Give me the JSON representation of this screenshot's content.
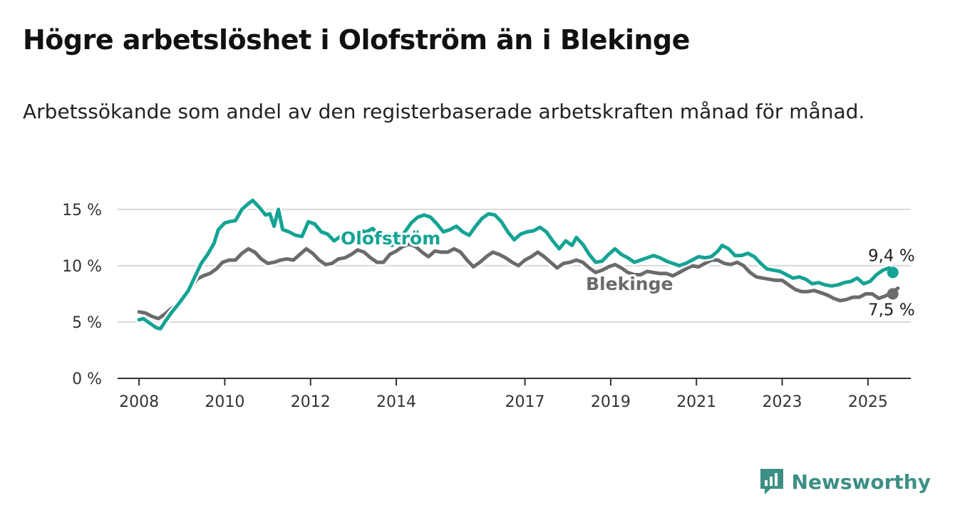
{
  "title": "Högre arbetslöshet i Olofström än i Blekinge",
  "subtitle": "Arbetssökande som andel av den registerbaserade arbetskraften månad för månad.",
  "brand": {
    "name": "Newsworthy",
    "icon": "newsworthy-logo-icon",
    "color": "#3d8f85"
  },
  "chart_data": {
    "type": "line",
    "title": "Högre arbetslöshet i Olofström än i Blekinge",
    "subtitle": "Arbetssökande som andel av den registerbaserade arbetskraften månad för månad.",
    "xlabel": "",
    "ylabel": "",
    "xlim": [
      2007.5,
      2026.1
    ],
    "ylim": [
      0,
      16
    ],
    "x_ticks": [
      2008,
      2010,
      2012,
      2014,
      2017,
      2019,
      2021,
      2023,
      2025
    ],
    "x_tick_labels": [
      "2008",
      "2010",
      "2012",
      "2014",
      "2017",
      "2019",
      "2021",
      "2023",
      "2025"
    ],
    "y_ticks": [
      0,
      5,
      10,
      15
    ],
    "y_tick_labels": [
      "0 %",
      "5 %",
      "10 %",
      "15 %"
    ],
    "grid": true,
    "legend": "inline labels",
    "series": [
      {
        "name": "Olofström",
        "color": "#14a394",
        "end_label": "9,4 %",
        "points": [
          [
            2008.0,
            5.2
          ],
          [
            2008.1,
            5.3
          ],
          [
            2008.25,
            4.9
          ],
          [
            2008.4,
            4.5
          ],
          [
            2008.5,
            4.4
          ],
          [
            2008.6,
            5.0
          ],
          [
            2008.75,
            5.8
          ],
          [
            2008.9,
            6.5
          ],
          [
            2009.0,
            7.0
          ],
          [
            2009.15,
            7.8
          ],
          [
            2009.3,
            9.0
          ],
          [
            2009.45,
            10.2
          ],
          [
            2009.6,
            11.0
          ],
          [
            2009.75,
            12.0
          ],
          [
            2009.85,
            13.2
          ],
          [
            2010.0,
            13.8
          ],
          [
            2010.1,
            13.9
          ],
          [
            2010.25,
            14.0
          ],
          [
            2010.4,
            15.0
          ],
          [
            2010.55,
            15.5
          ],
          [
            2010.65,
            15.8
          ],
          [
            2010.8,
            15.2
          ],
          [
            2010.95,
            14.5
          ],
          [
            2011.05,
            14.6
          ],
          [
            2011.15,
            13.5
          ],
          [
            2011.25,
            15.0
          ],
          [
            2011.35,
            13.2
          ],
          [
            2011.5,
            13.0
          ],
          [
            2011.65,
            12.7
          ],
          [
            2011.8,
            12.6
          ],
          [
            2011.95,
            13.9
          ],
          [
            2012.1,
            13.7
          ],
          [
            2012.25,
            13.0
          ],
          [
            2012.4,
            12.8
          ],
          [
            2012.55,
            12.2
          ],
          [
            2012.7,
            12.6
          ],
          [
            2012.85,
            12.9
          ],
          [
            2013.0,
            12.6
          ],
          [
            2013.15,
            13.1
          ],
          [
            2013.3,
            13.0
          ],
          [
            2013.45,
            13.3
          ],
          [
            2013.6,
            12.7
          ],
          [
            2013.75,
            12.0
          ],
          [
            2013.9,
            11.8
          ],
          [
            2014.05,
            12.3
          ],
          [
            2014.2,
            13.0
          ],
          [
            2014.35,
            13.8
          ],
          [
            2014.5,
            14.3
          ],
          [
            2014.65,
            14.5
          ],
          [
            2014.8,
            14.3
          ],
          [
            2014.95,
            13.7
          ],
          [
            2015.1,
            13.0
          ],
          [
            2015.25,
            13.2
          ],
          [
            2015.4,
            13.5
          ],
          [
            2015.55,
            13.0
          ],
          [
            2015.7,
            12.7
          ],
          [
            2015.85,
            13.5
          ],
          [
            2016.0,
            14.2
          ],
          [
            2016.15,
            14.6
          ],
          [
            2016.3,
            14.5
          ],
          [
            2016.45,
            13.9
          ],
          [
            2016.6,
            13.0
          ],
          [
            2016.75,
            12.3
          ],
          [
            2016.9,
            12.8
          ],
          [
            2017.05,
            13.0
          ],
          [
            2017.2,
            13.1
          ],
          [
            2017.35,
            13.4
          ],
          [
            2017.5,
            13.0
          ],
          [
            2017.65,
            12.2
          ],
          [
            2017.8,
            11.5
          ],
          [
            2017.95,
            12.2
          ],
          [
            2018.1,
            11.8
          ],
          [
            2018.2,
            12.5
          ],
          [
            2018.35,
            11.9
          ],
          [
            2018.5,
            11.0
          ],
          [
            2018.65,
            10.3
          ],
          [
            2018.8,
            10.4
          ],
          [
            2018.95,
            11.0
          ],
          [
            2019.1,
            11.5
          ],
          [
            2019.25,
            11.0
          ],
          [
            2019.4,
            10.7
          ],
          [
            2019.55,
            10.3
          ],
          [
            2019.7,
            10.5
          ],
          [
            2019.85,
            10.7
          ],
          [
            2020.0,
            10.9
          ],
          [
            2020.15,
            10.7
          ],
          [
            2020.3,
            10.4
          ],
          [
            2020.45,
            10.2
          ],
          [
            2020.6,
            10.0
          ],
          [
            2020.75,
            10.2
          ],
          [
            2020.9,
            10.5
          ],
          [
            2021.05,
            10.8
          ],
          [
            2021.2,
            10.7
          ],
          [
            2021.35,
            10.8
          ],
          [
            2021.5,
            11.3
          ],
          [
            2021.6,
            11.8
          ],
          [
            2021.75,
            11.5
          ],
          [
            2021.9,
            10.9
          ],
          [
            2022.05,
            10.9
          ],
          [
            2022.2,
            11.1
          ],
          [
            2022.35,
            10.8
          ],
          [
            2022.5,
            10.2
          ],
          [
            2022.65,
            9.7
          ],
          [
            2022.8,
            9.6
          ],
          [
            2022.95,
            9.5
          ],
          [
            2023.1,
            9.2
          ],
          [
            2023.25,
            8.9
          ],
          [
            2023.4,
            9.0
          ],
          [
            2023.55,
            8.8
          ],
          [
            2023.7,
            8.4
          ],
          [
            2023.85,
            8.5
          ],
          [
            2024.0,
            8.3
          ],
          [
            2024.15,
            8.2
          ],
          [
            2024.3,
            8.3
          ],
          [
            2024.45,
            8.5
          ],
          [
            2024.6,
            8.6
          ],
          [
            2024.75,
            8.9
          ],
          [
            2024.9,
            8.4
          ],
          [
            2025.05,
            8.6
          ],
          [
            2025.2,
            9.2
          ],
          [
            2025.35,
            9.6
          ],
          [
            2025.5,
            9.8
          ],
          [
            2025.58,
            9.4
          ]
        ]
      },
      {
        "name": "Blekinge",
        "color": "#6b6b6e",
        "end_label": "7,5 %",
        "points": [
          [
            2008.0,
            5.9
          ],
          [
            2008.15,
            5.8
          ],
          [
            2008.3,
            5.5
          ],
          [
            2008.45,
            5.3
          ],
          [
            2008.6,
            5.7
          ],
          [
            2008.75,
            6.2
          ],
          [
            2008.9,
            6.6
          ],
          [
            2009.05,
            7.2
          ],
          [
            2009.2,
            8.0
          ],
          [
            2009.35,
            8.8
          ],
          [
            2009.5,
            9.1
          ],
          [
            2009.65,
            9.3
          ],
          [
            2009.8,
            9.7
          ],
          [
            2009.95,
            10.3
          ],
          [
            2010.1,
            10.5
          ],
          [
            2010.25,
            10.5
          ],
          [
            2010.4,
            11.1
          ],
          [
            2010.55,
            11.5
          ],
          [
            2010.7,
            11.2
          ],
          [
            2010.85,
            10.6
          ],
          [
            2011.0,
            10.2
          ],
          [
            2011.15,
            10.3
          ],
          [
            2011.3,
            10.5
          ],
          [
            2011.45,
            10.6
          ],
          [
            2011.6,
            10.5
          ],
          [
            2011.75,
            11.0
          ],
          [
            2011.9,
            11.5
          ],
          [
            2012.05,
            11.1
          ],
          [
            2012.2,
            10.5
          ],
          [
            2012.35,
            10.1
          ],
          [
            2012.5,
            10.2
          ],
          [
            2012.65,
            10.6
          ],
          [
            2012.8,
            10.7
          ],
          [
            2012.95,
            11.0
          ],
          [
            2013.1,
            11.4
          ],
          [
            2013.25,
            11.2
          ],
          [
            2013.4,
            10.7
          ],
          [
            2013.55,
            10.3
          ],
          [
            2013.7,
            10.3
          ],
          [
            2013.85,
            11.0
          ],
          [
            2014.0,
            11.3
          ],
          [
            2014.15,
            11.7
          ],
          [
            2014.3,
            11.9
          ],
          [
            2014.45,
            11.7
          ],
          [
            2014.6,
            11.2
          ],
          [
            2014.75,
            10.8
          ],
          [
            2014.9,
            11.3
          ],
          [
            2015.05,
            11.2
          ],
          [
            2015.2,
            11.2
          ],
          [
            2015.35,
            11.5
          ],
          [
            2015.5,
            11.2
          ],
          [
            2015.65,
            10.5
          ],
          [
            2015.8,
            9.9
          ],
          [
            2015.95,
            10.3
          ],
          [
            2016.1,
            10.8
          ],
          [
            2016.25,
            11.2
          ],
          [
            2016.4,
            11.0
          ],
          [
            2016.55,
            10.7
          ],
          [
            2016.7,
            10.3
          ],
          [
            2016.85,
            10.0
          ],
          [
            2017.0,
            10.5
          ],
          [
            2017.15,
            10.8
          ],
          [
            2017.3,
            11.2
          ],
          [
            2017.45,
            10.8
          ],
          [
            2017.6,
            10.3
          ],
          [
            2017.75,
            9.8
          ],
          [
            2017.9,
            10.2
          ],
          [
            2018.05,
            10.3
          ],
          [
            2018.2,
            10.5
          ],
          [
            2018.35,
            10.3
          ],
          [
            2018.5,
            9.8
          ],
          [
            2018.65,
            9.4
          ],
          [
            2018.8,
            9.6
          ],
          [
            2018.95,
            9.9
          ],
          [
            2019.1,
            10.1
          ],
          [
            2019.25,
            9.8
          ],
          [
            2019.4,
            9.4
          ],
          [
            2019.55,
            9.2
          ],
          [
            2019.7,
            9.2
          ],
          [
            2019.85,
            9.5
          ],
          [
            2020.0,
            9.4
          ],
          [
            2020.15,
            9.3
          ],
          [
            2020.3,
            9.3
          ],
          [
            2020.45,
            9.1
          ],
          [
            2020.6,
            9.4
          ],
          [
            2020.75,
            9.7
          ],
          [
            2020.9,
            10.0
          ],
          [
            2021.05,
            9.9
          ],
          [
            2021.2,
            10.2
          ],
          [
            2021.35,
            10.5
          ],
          [
            2021.5,
            10.5
          ],
          [
            2021.65,
            10.2
          ],
          [
            2021.8,
            10.1
          ],
          [
            2021.95,
            10.3
          ],
          [
            2022.1,
            10.0
          ],
          [
            2022.25,
            9.4
          ],
          [
            2022.4,
            9.0
          ],
          [
            2022.55,
            8.9
          ],
          [
            2022.7,
            8.8
          ],
          [
            2022.85,
            8.7
          ],
          [
            2023.0,
            8.7
          ],
          [
            2023.15,
            8.3
          ],
          [
            2023.3,
            7.9
          ],
          [
            2023.45,
            7.7
          ],
          [
            2023.6,
            7.7
          ],
          [
            2023.75,
            7.8
          ],
          [
            2023.9,
            7.6
          ],
          [
            2024.05,
            7.4
          ],
          [
            2024.2,
            7.1
          ],
          [
            2024.35,
            6.9
          ],
          [
            2024.5,
            7.0
          ],
          [
            2024.65,
            7.2
          ],
          [
            2024.8,
            7.2
          ],
          [
            2024.95,
            7.5
          ],
          [
            2025.1,
            7.5
          ],
          [
            2025.25,
            7.1
          ],
          [
            2025.4,
            7.3
          ],
          [
            2025.55,
            7.6
          ],
          [
            2025.7,
            8.0
          ],
          [
            2025.58,
            7.5
          ]
        ]
      }
    ]
  }
}
